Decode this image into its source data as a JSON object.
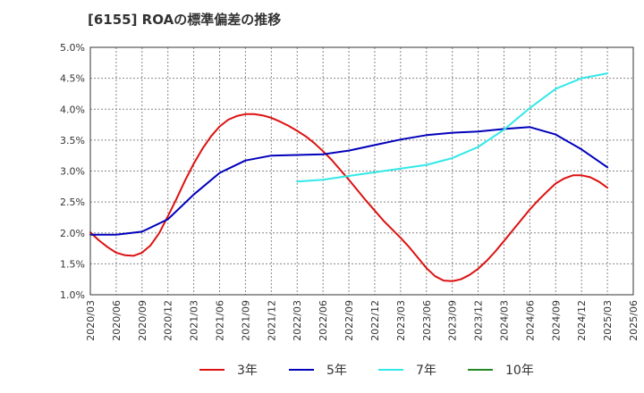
{
  "chart_data": {
    "type": "line",
    "title": "[6155]  ROAの標準偏差の推移",
    "xlabel": "",
    "ylabel": "",
    "x_ticks": [
      "2020/03",
      "2020/06",
      "2020/09",
      "2020/12",
      "2021/03",
      "2021/06",
      "2021/09",
      "2021/12",
      "2022/03",
      "2022/06",
      "2022/09",
      "2022/12",
      "2023/03",
      "2023/06",
      "2023/09",
      "2023/12",
      "2024/03",
      "2024/06",
      "2024/09",
      "2024/12",
      "2025/03",
      "2025/06"
    ],
    "y_ticks": [
      "1.0%",
      "1.5%",
      "2.0%",
      "2.5%",
      "3.0%",
      "3.5%",
      "4.0%",
      "4.5%",
      "5.0%"
    ],
    "ylim": [
      1.0,
      5.0
    ],
    "grid": true,
    "legend_position": "bottom",
    "series": [
      {
        "name": "3年",
        "color": "#dd1111",
        "x": [
          "2020/03",
          "2020/04",
          "2020/05",
          "2020/06",
          "2020/07",
          "2020/08",
          "2020/09",
          "2020/10",
          "2020/11",
          "2020/12",
          "2021/01",
          "2021/02",
          "2021/03",
          "2021/04",
          "2021/05",
          "2021/06",
          "2021/07",
          "2021/08",
          "2021/09",
          "2021/10",
          "2021/11",
          "2021/12",
          "2022/01",
          "2022/02",
          "2022/03",
          "2022/04",
          "2022/05",
          "2022/06",
          "2022/07",
          "2022/08",
          "2022/09",
          "2022/10",
          "2022/11",
          "2022/12",
          "2023/01",
          "2023/02",
          "2023/03",
          "2023/04",
          "2023/05",
          "2023/06",
          "2023/07",
          "2023/08",
          "2023/09",
          "2023/10",
          "2023/11",
          "2023/12",
          "2024/01",
          "2024/02",
          "2024/03",
          "2024/04",
          "2024/05",
          "2024/06",
          "2024/07",
          "2024/08",
          "2024/09",
          "2024/10",
          "2024/11",
          "2024/12",
          "2025/01",
          "2025/02",
          "2025/03"
        ],
        "values": [
          2.01,
          1.88,
          1.77,
          1.68,
          1.64,
          1.63,
          1.68,
          1.8,
          2.0,
          2.27,
          2.55,
          2.85,
          3.12,
          3.36,
          3.56,
          3.72,
          3.83,
          3.89,
          3.92,
          3.92,
          3.9,
          3.86,
          3.8,
          3.73,
          3.65,
          3.56,
          3.45,
          3.32,
          3.18,
          3.02,
          2.86,
          2.69,
          2.52,
          2.36,
          2.2,
          2.06,
          1.92,
          1.77,
          1.6,
          1.43,
          1.3,
          1.23,
          1.22,
          1.25,
          1.32,
          1.42,
          1.55,
          1.7,
          1.87,
          2.04,
          2.21,
          2.38,
          2.53,
          2.67,
          2.8,
          2.88,
          2.93,
          2.93,
          2.9,
          2.83,
          2.73
        ]
      },
      {
        "name": "5年",
        "color": "#0000bb",
        "x": [
          "2020/03",
          "2020/06",
          "2020/09",
          "2020/12",
          "2021/03",
          "2021/06",
          "2021/09",
          "2021/12",
          "2022/03",
          "2022/06",
          "2022/09",
          "2022/12",
          "2023/03",
          "2023/06",
          "2023/09",
          "2023/12",
          "2024/03",
          "2024/06",
          "2024/09",
          "2024/12",
          "2025/03"
        ],
        "values": [
          1.97,
          1.97,
          2.02,
          2.22,
          2.62,
          2.97,
          3.17,
          3.25,
          3.26,
          3.27,
          3.33,
          3.42,
          3.51,
          3.58,
          3.62,
          3.64,
          3.68,
          3.71,
          3.59,
          3.35,
          3.06
        ]
      },
      {
        "name": "7年",
        "color": "#33e8e8",
        "x": [
          "2022/03",
          "2022/06",
          "2022/09",
          "2022/12",
          "2023/03",
          "2023/06",
          "2023/09",
          "2023/12",
          "2024/03",
          "2024/06",
          "2024/09",
          "2024/12",
          "2025/03"
        ],
        "values": [
          2.83,
          2.86,
          2.92,
          2.98,
          3.04,
          3.1,
          3.21,
          3.39,
          3.67,
          4.02,
          4.33,
          4.5,
          4.58
        ]
      },
      {
        "name": "10年",
        "color": "#228822",
        "x": [],
        "values": []
      }
    ]
  }
}
